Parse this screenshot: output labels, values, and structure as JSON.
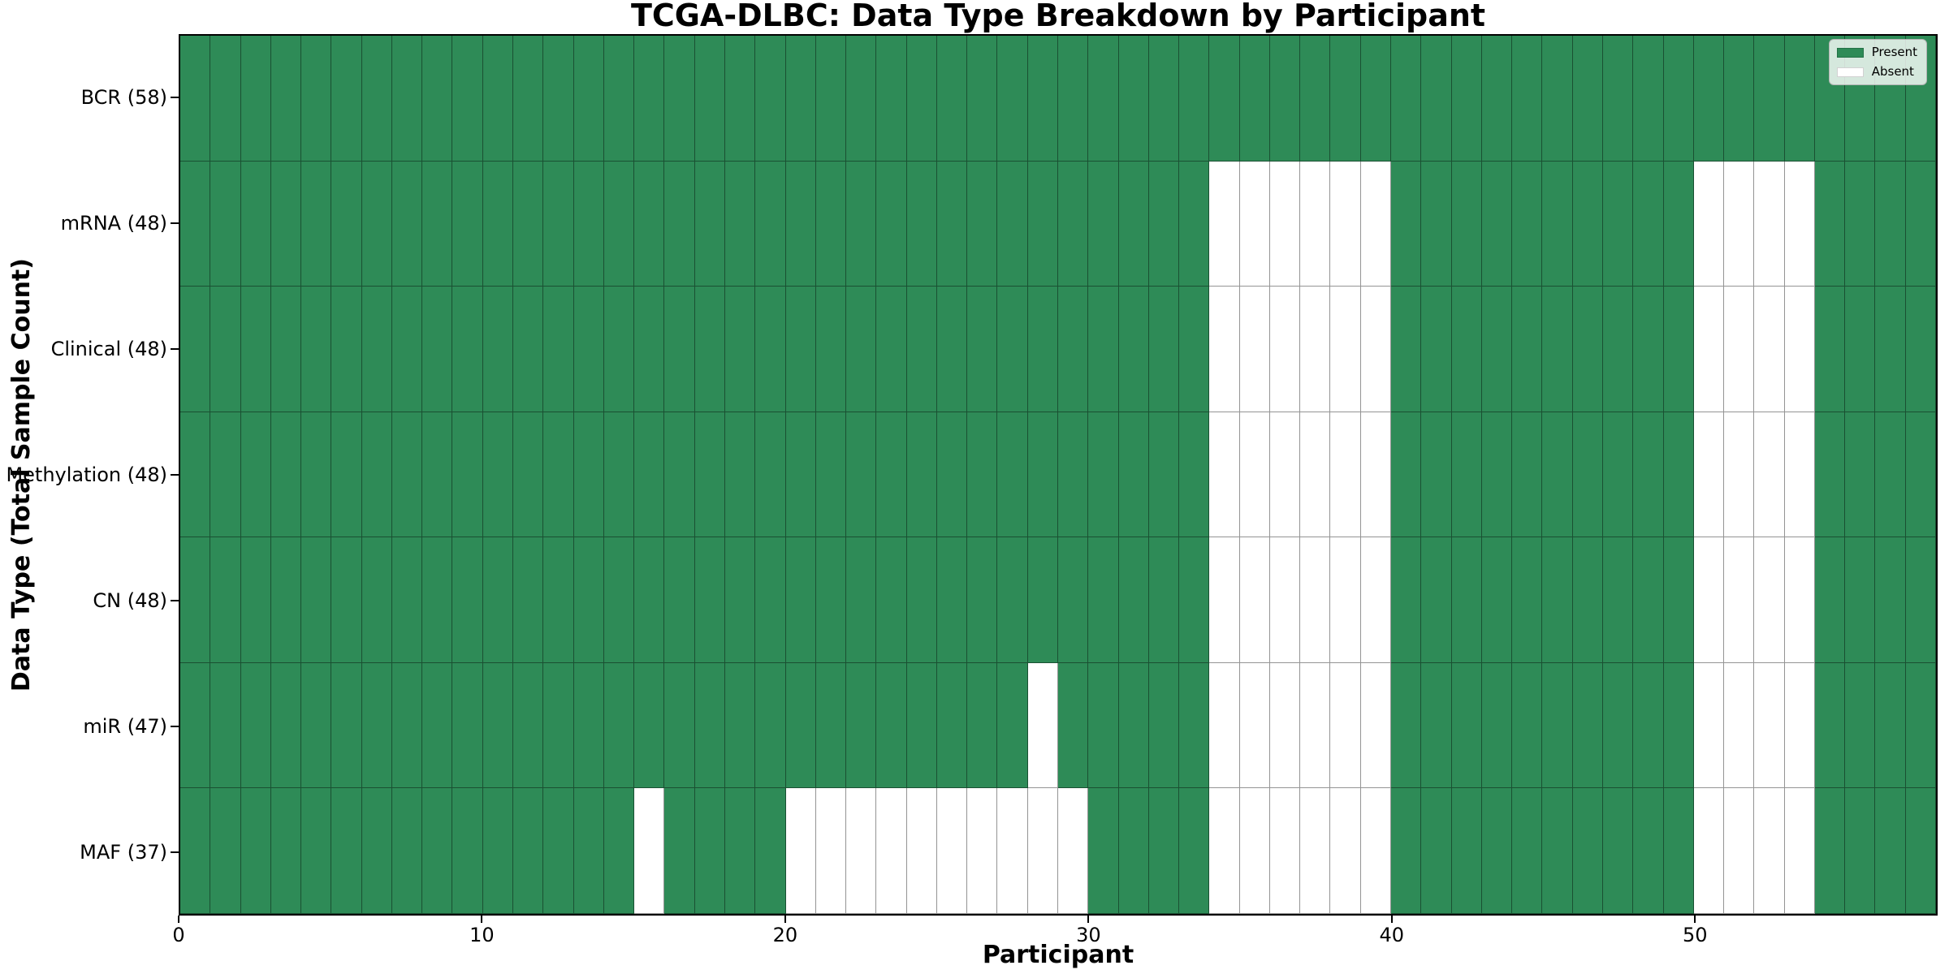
{
  "chart_data": {
    "type": "heatmap",
    "title": "TCGA-DLBC: Data Type Breakdown by Participant",
    "xlabel": "Participant",
    "ylabel": "Data Type (Total Sample Count)",
    "xlim": [
      0,
      58
    ],
    "n_participants": 58,
    "x_ticks": [
      0,
      10,
      20,
      30,
      40,
      50
    ],
    "grid_lines": "cell-edges",
    "legend_position": "upper right",
    "colors": {
      "present": "#2e8b57",
      "absent": "#ffffff",
      "cell_edge": "rgba(0,0,0,0.42)",
      "spine": "#000000"
    },
    "legend": [
      {
        "label": "Present",
        "key": "present"
      },
      {
        "label": "Absent",
        "key": "absent"
      }
    ],
    "rows": [
      {
        "label": "BCR (58)",
        "data_type": "BCR",
        "total": 58,
        "absent_participants": []
      },
      {
        "label": "mRNA (48)",
        "data_type": "mRNA",
        "total": 48,
        "absent_participants": [
          34,
          35,
          36,
          37,
          38,
          39,
          50,
          51,
          52,
          53
        ]
      },
      {
        "label": "Clinical (48)",
        "data_type": "Clinical",
        "total": 48,
        "absent_participants": [
          34,
          35,
          36,
          37,
          38,
          39,
          50,
          51,
          52,
          53
        ]
      },
      {
        "label": "Methylation (48)",
        "data_type": "Methylation",
        "total": 48,
        "absent_participants": [
          34,
          35,
          36,
          37,
          38,
          39,
          50,
          51,
          52,
          53
        ]
      },
      {
        "label": "CN (48)",
        "data_type": "CN",
        "total": 48,
        "absent_participants": [
          34,
          35,
          36,
          37,
          38,
          39,
          50,
          51,
          52,
          53
        ]
      },
      {
        "label": "miR (47)",
        "data_type": "miR",
        "total": 47,
        "absent_participants": [
          28,
          34,
          35,
          36,
          37,
          38,
          39,
          50,
          51,
          52,
          53
        ]
      },
      {
        "label": "MAF (37)",
        "data_type": "MAF",
        "total": 37,
        "absent_participants": [
          15,
          20,
          21,
          22,
          23,
          24,
          25,
          26,
          27,
          28,
          29,
          34,
          35,
          36,
          37,
          38,
          39,
          50,
          51,
          52,
          53
        ]
      }
    ]
  }
}
